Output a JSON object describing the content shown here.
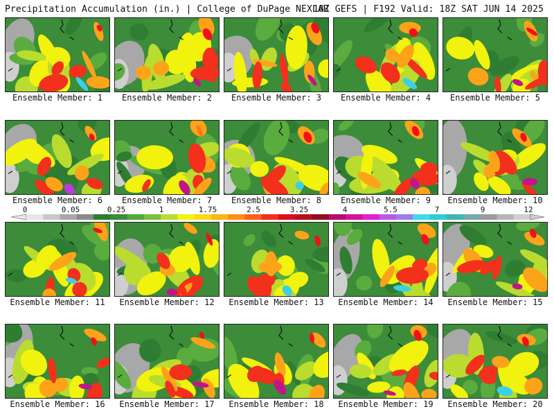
{
  "header": {
    "left": "Precipitation Accumulation (in.) | College of DuPage NEXLAB",
    "right": "18Z GEFS | F192 Valid: 18Z SAT JUN 14 2025"
  },
  "members": [
    {
      "label": "Ensemble Member: 1",
      "hot": "#f40f1a",
      "core": "#3ccfe8",
      "gray": true
    },
    {
      "label": "Ensemble Member: 2",
      "hot": "#f40f1a",
      "core": "#c2148b",
      "gray": true
    },
    {
      "label": "Ensemble Member: 3",
      "hot": "#f40f1a",
      "core": "#c2148b",
      "gray": true
    },
    {
      "label": "Ensemble Member: 4",
      "hot": "#f40f1a",
      "core": "#3ccfe8",
      "gray": false
    },
    {
      "label": "Ensemble Member: 5",
      "hot": "#f40f1a",
      "core": "#c2148b",
      "gray": false
    },
    {
      "label": "Ensemble Member: 6",
      "hot": "#f40f1a",
      "core": "#b93ce0",
      "gray": true
    },
    {
      "label": "Ensemble Member: 7",
      "hot": "#ff7a14",
      "core": "#c2148b",
      "gray": true
    },
    {
      "label": "Ensemble Member: 8",
      "hot": "#f40f1a",
      "core": "#3ccfe8",
      "gray": true
    },
    {
      "label": "Ensemble Member: 9",
      "hot": "#f40f1a",
      "core": "#c2148b",
      "gray": true
    },
    {
      "label": "Ensemble Member: 10",
      "hot": "#f40f1a",
      "core": "#c2148b",
      "gray": true
    },
    {
      "label": "Ensemble Member: 11",
      "hot": "#f40f1a",
      "core": "#3ccfe8",
      "gray": false
    },
    {
      "label": "Ensemble Member: 12",
      "hot": "#f40f1a",
      "core": "#c2148b",
      "gray": true
    },
    {
      "label": "Ensemble Member: 13",
      "hot": "#f40f1a",
      "core": "#3ccfe8",
      "gray": false
    },
    {
      "label": "Ensemble Member: 14",
      "hot": "#f40f1a",
      "core": "#3ccfe8",
      "gray": true
    },
    {
      "label": "Ensemble Member: 15",
      "hot": "#f40f1a",
      "core": "#c2148b",
      "gray": true
    },
    {
      "label": "Ensemble Member: 16",
      "hot": "#f40f1a",
      "core": "#c2148b",
      "gray": true
    },
    {
      "label": "Ensemble Member: 17",
      "hot": "#f40f1a",
      "core": "#c2148b",
      "gray": true
    },
    {
      "label": "Ensemble Member: 18",
      "hot": "#f40f1a",
      "core": "#c2148b",
      "gray": false
    },
    {
      "label": "Ensemble Member: 19",
      "hot": "#f40f1a",
      "core": "#c2148b",
      "gray": true
    },
    {
      "label": "Ensemble Member: 20",
      "hot": "#f40f1a",
      "core": "#3ccfe8",
      "gray": true
    }
  ],
  "colorbar": {
    "ticks": [
      "0",
      "0.05",
      "0.25",
      "1",
      "1.75",
      "2.5",
      "3.25",
      "4",
      "5.5",
      "7",
      "9",
      "12"
    ],
    "colors": [
      "#e6e6e6",
      "#c8c8c8",
      "#a8a8a8",
      "#8a8a8a",
      "#2f7d32",
      "#3c8c3a",
      "#4fa83d",
      "#79c13d",
      "#b9dc2f",
      "#f2f20f",
      "#fbd81a",
      "#fdb515",
      "#ff8c13",
      "#f9621b",
      "#f2301c",
      "#dd0f1e",
      "#b3101b",
      "#8c0f22",
      "#b50e6b",
      "#d21495",
      "#e022d0",
      "#b55be6",
      "#9a7fe8",
      "#41d8ee",
      "#2fcdd6",
      "#3db5b3",
      "#77a9a7",
      "#9c9c9c",
      "#b6b6b6",
      "#cfcfcf"
    ]
  },
  "palette": {
    "green_dark": "#2f7d32",
    "green": "#3c8c3a",
    "green_light": "#5aac3f",
    "yellow_green": "#b9dc2f",
    "yellow": "#f2f20f",
    "orange": "#fda31a",
    "red": "#f2301c",
    "gray": "#a8a8a8"
  }
}
